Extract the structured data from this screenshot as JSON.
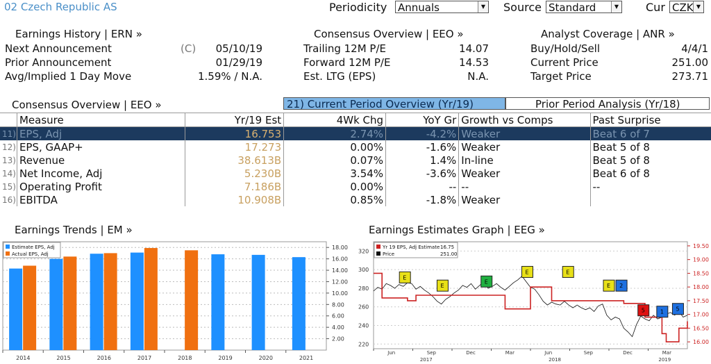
{
  "header": {
    "title": "02 Czech Republic AS",
    "periodicity_label": "Periodicity",
    "periodicity_value": "Annuals",
    "source_label": "Source",
    "source_value": "Standard",
    "cur_label": "Cur",
    "cur_value": "CZK"
  },
  "earnings_history": {
    "title": "Earnings History | ERN »",
    "rows": [
      {
        "label": "Next Announcement",
        "flag": "(C)",
        "value": "05/10/19"
      },
      {
        "label": "Prior Announcement",
        "flag": "",
        "value": "01/29/19"
      },
      {
        "label": "Avg/Implied 1 Day Move",
        "flag": "",
        "value": "1.59% / N.A."
      }
    ]
  },
  "consensus_top": {
    "title": "Consensus Overview | EEO »",
    "rows": [
      {
        "label": "Trailing 12M P/E",
        "value": "14.07"
      },
      {
        "label": "Forward 12M P/E",
        "value": "14.53"
      },
      {
        "label": "Est. LTG (EPS)",
        "value": "N.A."
      }
    ]
  },
  "analyst_coverage": {
    "title": "Analyst Coverage | ANR »",
    "rows": [
      {
        "label": "Buy/Hold/Sell",
        "value": "4/4/1"
      },
      {
        "label": "Current Price",
        "value": "251.00"
      },
      {
        "label": "Target Price",
        "value": "273.71"
      }
    ]
  },
  "consensus_table": {
    "title": "Consensus Overview | EEO »",
    "tab_current": "21) Current Period Overview (Yr/19)",
    "tab_prior": "Prior Period Analysis (Yr/18)",
    "columns": [
      "Measure",
      "Yr/19 Est",
      "4Wk Chg",
      "YoY Gr",
      "Growth vs Comps",
      "Past Surprise"
    ],
    "rows": [
      {
        "idx": "11)",
        "measure": "EPS, Adj",
        "est": "16.753",
        "chg": "2.74%",
        "yoy": "-4.2%",
        "growth": "Weaker",
        "surprise": "Beat 6 of 7"
      },
      {
        "idx": "12)",
        "measure": "EPS, GAAP+",
        "est": "17.273",
        "chg": "0.00%",
        "yoy": "-1.6%",
        "growth": "Weaker",
        "surprise": "Beat 5 of 8"
      },
      {
        "idx": "13)",
        "measure": "Revenue",
        "est": "38.613B",
        "chg": "0.07%",
        "yoy": "1.4%",
        "growth": "In-line",
        "surprise": "Beat 5 of 8"
      },
      {
        "idx": "14)",
        "measure": "Net Income, Adj",
        "est": "5.230B",
        "chg": "3.54%",
        "yoy": "-3.6%",
        "growth": "Weaker",
        "surprise": "Beat 6 of 8"
      },
      {
        "idx": "15)",
        "measure": "Operating Profit",
        "est": "7.186B",
        "chg": "0.00%",
        "yoy": "--",
        "growth": "--",
        "surprise": "--"
      },
      {
        "idx": "16)",
        "measure": "EBITDA",
        "est": "10.908B",
        "chg": "0.85%",
        "yoy": "-1.8%",
        "growth": "Weaker",
        "surprise": ""
      }
    ]
  },
  "chart_data": [
    {
      "type": "bar",
      "title": "Earnings Trends | EM »",
      "categories": [
        "2014",
        "2015",
        "2016",
        "2017",
        "2018",
        "2019",
        "2020",
        "2021"
      ],
      "series": [
        {
          "name": "Estimate EPS, Adj",
          "values": [
            14.3,
            16.0,
            16.9,
            17.1,
            null,
            16.8,
            16.7,
            16.3
          ],
          "color": "#1e90ff"
        },
        {
          "name": "Actual EPS, Adj",
          "values": [
            14.8,
            16.4,
            17.0,
            17.9,
            17.5,
            null,
            null,
            null
          ],
          "color": "#f07010"
        }
      ],
      "yticks": [
        "2.00",
        "4.00",
        "6.00",
        "8.00",
        "10.00",
        "12.00",
        "14.00",
        "16.00",
        "18.00"
      ],
      "ylim": [
        0,
        19
      ]
    },
    {
      "type": "line",
      "title": "Earnings Estimates Graph | EEG »",
      "legend": [
        {
          "name": "Yr 19 EPS, Adj Estimate",
          "value": "16.75",
          "color": "#cc2222"
        },
        {
          "name": "Price",
          "value": "251.00",
          "color": "#111111"
        }
      ],
      "left_ticks": [
        "220",
        "240",
        "260",
        "280",
        "300",
        "320"
      ],
      "right_ticks": [
        "16.00",
        "16.50",
        "17.00",
        "17.50",
        "18.00",
        "18.50",
        "19.00",
        "19.50"
      ],
      "months": [
        "Jun",
        "Sep",
        "Dec",
        "Mar",
        "Jun",
        "Sep",
        "Dec",
        "Mar"
      ],
      "years": [
        "2017",
        "2018",
        "2019"
      ],
      "price": [
        277,
        281,
        279,
        285,
        283,
        280,
        284,
        282,
        286,
        285,
        279,
        282,
        278,
        275,
        271,
        266,
        263,
        268,
        271,
        275,
        278,
        283,
        281,
        285,
        279,
        283,
        287,
        280,
        282,
        285,
        281,
        278,
        282,
        286,
        289,
        293,
        287,
        281,
        279,
        273,
        266,
        262,
        265,
        263,
        262,
        266,
        262,
        259,
        262,
        259,
        257,
        259,
        255,
        261,
        263,
        251,
        246,
        249,
        247,
        237,
        233,
        228,
        241,
        250,
        247,
        245,
        251,
        247,
        249,
        252,
        254,
        251,
        255,
        249,
        251
      ],
      "estimate": [
        18.5,
        18.5,
        17.6,
        17.6,
        17.6,
        17.6,
        17.6,
        17.6,
        17.5,
        17.5,
        17.7,
        17.7,
        17.7,
        17.7,
        17.7,
        17.7,
        17.7,
        17.7,
        17.7,
        17.7,
        17.7,
        17.7,
        17.7,
        17.7,
        17.7,
        17.7,
        17.7,
        17.7,
        17.7,
        17.7,
        17.7,
        17.2,
        17.2,
        17.2,
        17.2,
        17.2,
        17.2,
        18.0,
        18.0,
        18.0,
        18.0,
        18.0,
        17.5,
        17.5,
        17.5,
        17.5,
        17.5,
        17.5,
        17.5,
        17.5,
        17.5,
        17.5,
        17.5,
        17.5,
        17.5,
        17.5,
        17.5,
        17.5,
        17.5,
        17.4,
        17.4,
        17.4,
        17.4,
        17.4,
        16.9,
        16.9,
        16.9,
        16.9,
        16.3,
        16.0,
        16.0,
        16.0,
        16.5,
        16.5,
        16.75
      ],
      "events": [
        {
          "label": "E",
          "pos": 0.1,
          "level": 18.35,
          "color": "#e8e018"
        },
        {
          "label": "E",
          "pos": 0.22,
          "level": 18.05,
          "color": "#e8e018"
        },
        {
          "label": "E",
          "pos": 0.36,
          "level": 18.2,
          "color": "#20b040"
        },
        {
          "label": "E",
          "pos": 0.49,
          "level": 18.55,
          "color": "#e8e018"
        },
        {
          "label": "E",
          "pos": 0.62,
          "level": 18.55,
          "color": "#e8e018"
        },
        {
          "label": "E",
          "pos": 0.75,
          "level": 18.05,
          "color": "#e8e018"
        },
        {
          "label": "2",
          "pos": 0.79,
          "level": 18.05,
          "color": "#1e70e0"
        },
        {
          "label": "5",
          "pos": 0.86,
          "level": 17.15,
          "color": "#dd1111"
        },
        {
          "label": "1",
          "pos": 0.92,
          "level": 17.1,
          "color": "#1e70e0"
        },
        {
          "label": "5",
          "pos": 0.97,
          "level": 17.2,
          "color": "#1e70e0"
        }
      ]
    }
  ]
}
